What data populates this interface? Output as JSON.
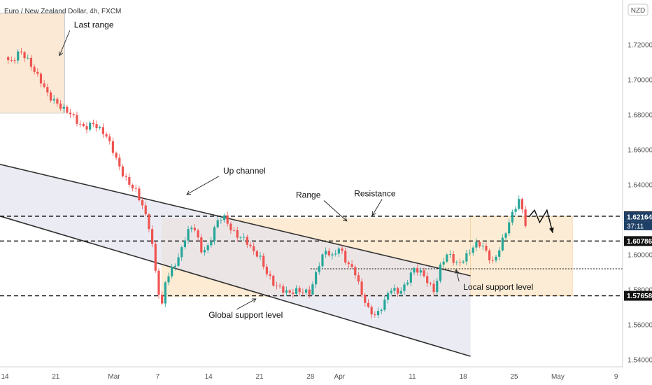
{
  "header": {
    "title": "Euro / New Zealand Dollar, 4h, FXCM"
  },
  "currency_label": "NZD",
  "colors": {
    "up": "#26a69a",
    "down": "#ef5350",
    "channel_fill": "#e3e3ee",
    "range_fill": "#fde6c8",
    "last_range_fill": "#fbe9d6",
    "price_badge": "#111111",
    "current_badge": "#1e3f66"
  },
  "chart_data": {
    "type": "candlestick",
    "title": "Euro / New Zealand Dollar, 4h, FXCM",
    "y_axis": {
      "min": 1.53,
      "max": 1.745,
      "ticks": [
        "1.72000",
        "1.70000",
        "1.68000",
        "1.66000",
        "1.64000",
        "1.62000",
        "1.60000",
        "1.58000",
        "1.56000",
        "1.54000"
      ],
      "position": "right"
    },
    "x_axis": {
      "ticks": [
        {
          "label": "14",
          "t": 0
        },
        {
          "label": "21",
          "t": 7
        },
        {
          "label": "Mar",
          "t": 15
        },
        {
          "label": "7",
          "t": 21
        },
        {
          "label": "14",
          "t": 28
        },
        {
          "label": "21",
          "t": 35
        },
        {
          "label": "28",
          "t": 42
        },
        {
          "label": "Apr",
          "t": 46
        },
        {
          "label": "11",
          "t": 56
        },
        {
          "label": "18",
          "t": 63
        },
        {
          "label": "25",
          "t": 70
        },
        {
          "label": "May",
          "t": 76
        },
        {
          "label": "9",
          "t": 84
        }
      ]
    },
    "price_path": [
      [
        0,
        1.713
      ],
      [
        1,
        1.709
      ],
      [
        2,
        1.716
      ],
      [
        3,
        1.713
      ],
      [
        4,
        1.706
      ],
      [
        5,
        1.698
      ],
      [
        6,
        1.69
      ],
      [
        7,
        1.688
      ],
      [
        8,
        1.684
      ],
      [
        9,
        1.68
      ],
      [
        10,
        1.675
      ],
      [
        11,
        1.673
      ],
      [
        12,
        1.676
      ],
      [
        13,
        1.671
      ],
      [
        14,
        1.667
      ],
      [
        15,
        1.659
      ],
      [
        16,
        1.648
      ],
      [
        17,
        1.64
      ],
      [
        18,
        1.636
      ],
      [
        19,
        1.628
      ],
      [
        20,
        1.614
      ],
      [
        21,
        1.58
      ],
      [
        21.6,
        1.57
      ],
      [
        22,
        1.584
      ],
      [
        23,
        1.593
      ],
      [
        24,
        1.6
      ],
      [
        25,
        1.612
      ],
      [
        26,
        1.616
      ],
      [
        27,
        1.603
      ],
      [
        28,
        1.605
      ],
      [
        29,
        1.617
      ],
      [
        30,
        1.622
      ],
      [
        31,
        1.616
      ],
      [
        32,
        1.611
      ],
      [
        33,
        1.608
      ],
      [
        34,
        1.602
      ],
      [
        35,
        1.6
      ],
      [
        36,
        1.59
      ],
      [
        37,
        1.582
      ],
      [
        38,
        1.58
      ],
      [
        39,
        1.579
      ],
      [
        40,
        1.58
      ],
      [
        41,
        1.578
      ],
      [
        42,
        1.578
      ],
      [
        43,
        1.594
      ],
      [
        44,
        1.603
      ],
      [
        45,
        1.598
      ],
      [
        46,
        1.604
      ],
      [
        47,
        1.596
      ],
      [
        48,
        1.592
      ],
      [
        49,
        1.577
      ],
      [
        50,
        1.568
      ],
      [
        51,
        1.566
      ],
      [
        52,
        1.572
      ],
      [
        53,
        1.58
      ],
      [
        54,
        1.578
      ],
      [
        55,
        1.583
      ],
      [
        56,
        1.592
      ],
      [
        57,
        1.59
      ],
      [
        58,
        1.585
      ],
      [
        59,
        1.58
      ],
      [
        60,
        1.596
      ],
      [
        61,
        1.6
      ],
      [
        62,
        1.594
      ],
      [
        63,
        1.598
      ],
      [
        64,
        1.603
      ],
      [
        65,
        1.606
      ],
      [
        66,
        1.603
      ],
      [
        67,
        1.596
      ],
      [
        68,
        1.604
      ],
      [
        69,
        1.614
      ],
      [
        70,
        1.626
      ],
      [
        70.8,
        1.633
      ],
      [
        71.5,
        1.618
      ],
      [
        72,
        1.6216
      ]
    ],
    "projection": [
      [
        72,
        1.6216
      ],
      [
        72.8,
        1.6255
      ],
      [
        73.5,
        1.6185
      ],
      [
        74.5,
        1.6255
      ],
      [
        75.3,
        1.6125
      ]
    ],
    "levels": [
      {
        "value": 1.62205,
        "label": "1.62205",
        "style": "dashed"
      },
      {
        "value": 1.60786,
        "label": "1.60786",
        "style": "dashed"
      },
      {
        "value": 1.57658,
        "label": "1.57658",
        "style": "dashed"
      },
      {
        "value": 1.592,
        "label": "",
        "style": "dotted"
      }
    ],
    "current": {
      "value": 1.62164,
      "label": "1.62164",
      "countdown": "37:11"
    },
    "channel": {
      "upper": [
        [
          -1,
          1.652
        ],
        [
          64,
          1.588
        ]
      ],
      "lower": [
        [
          -1,
          1.6225
        ],
        [
          64,
          1.542
        ]
      ]
    },
    "zones": {
      "range": {
        "t0": 21.5,
        "t1": 64,
        "lo": 1.576,
        "hi": 1.621
      },
      "right_range": {
        "t0": 64,
        "t1": 78,
        "lo": 1.5766,
        "hi": 1.6219
      },
      "last_range": {
        "t0": -1,
        "t1": 8.2,
        "lo": 1.681,
        "hi": 1.738
      }
    },
    "annotations": [
      {
        "text": "Last range",
        "t": 9.5,
        "price": 1.7298,
        "arrow_to": [
          7.5,
          1.7138
        ]
      },
      {
        "text": "Up channel",
        "t": 30,
        "price": 1.6465,
        "arrow_to": [
          25,
          1.6345
        ]
      },
      {
        "text": "Range",
        "t": 40,
        "price": 1.6326,
        "arrow_to": [
          47,
          1.6193
        ]
      },
      {
        "text": "Resistance",
        "t": 48,
        "price": 1.6334,
        "arrow_to": [
          50.5,
          1.6225
        ]
      },
      {
        "text": "Local support level",
        "t": 63,
        "price": 1.58,
        "arrow_to": [
          62,
          1.5915
        ]
      },
      {
        "text": "Global support level",
        "t": 28,
        "price": 1.564,
        "arrow_to": [
          34.5,
          1.5748
        ]
      }
    ]
  }
}
